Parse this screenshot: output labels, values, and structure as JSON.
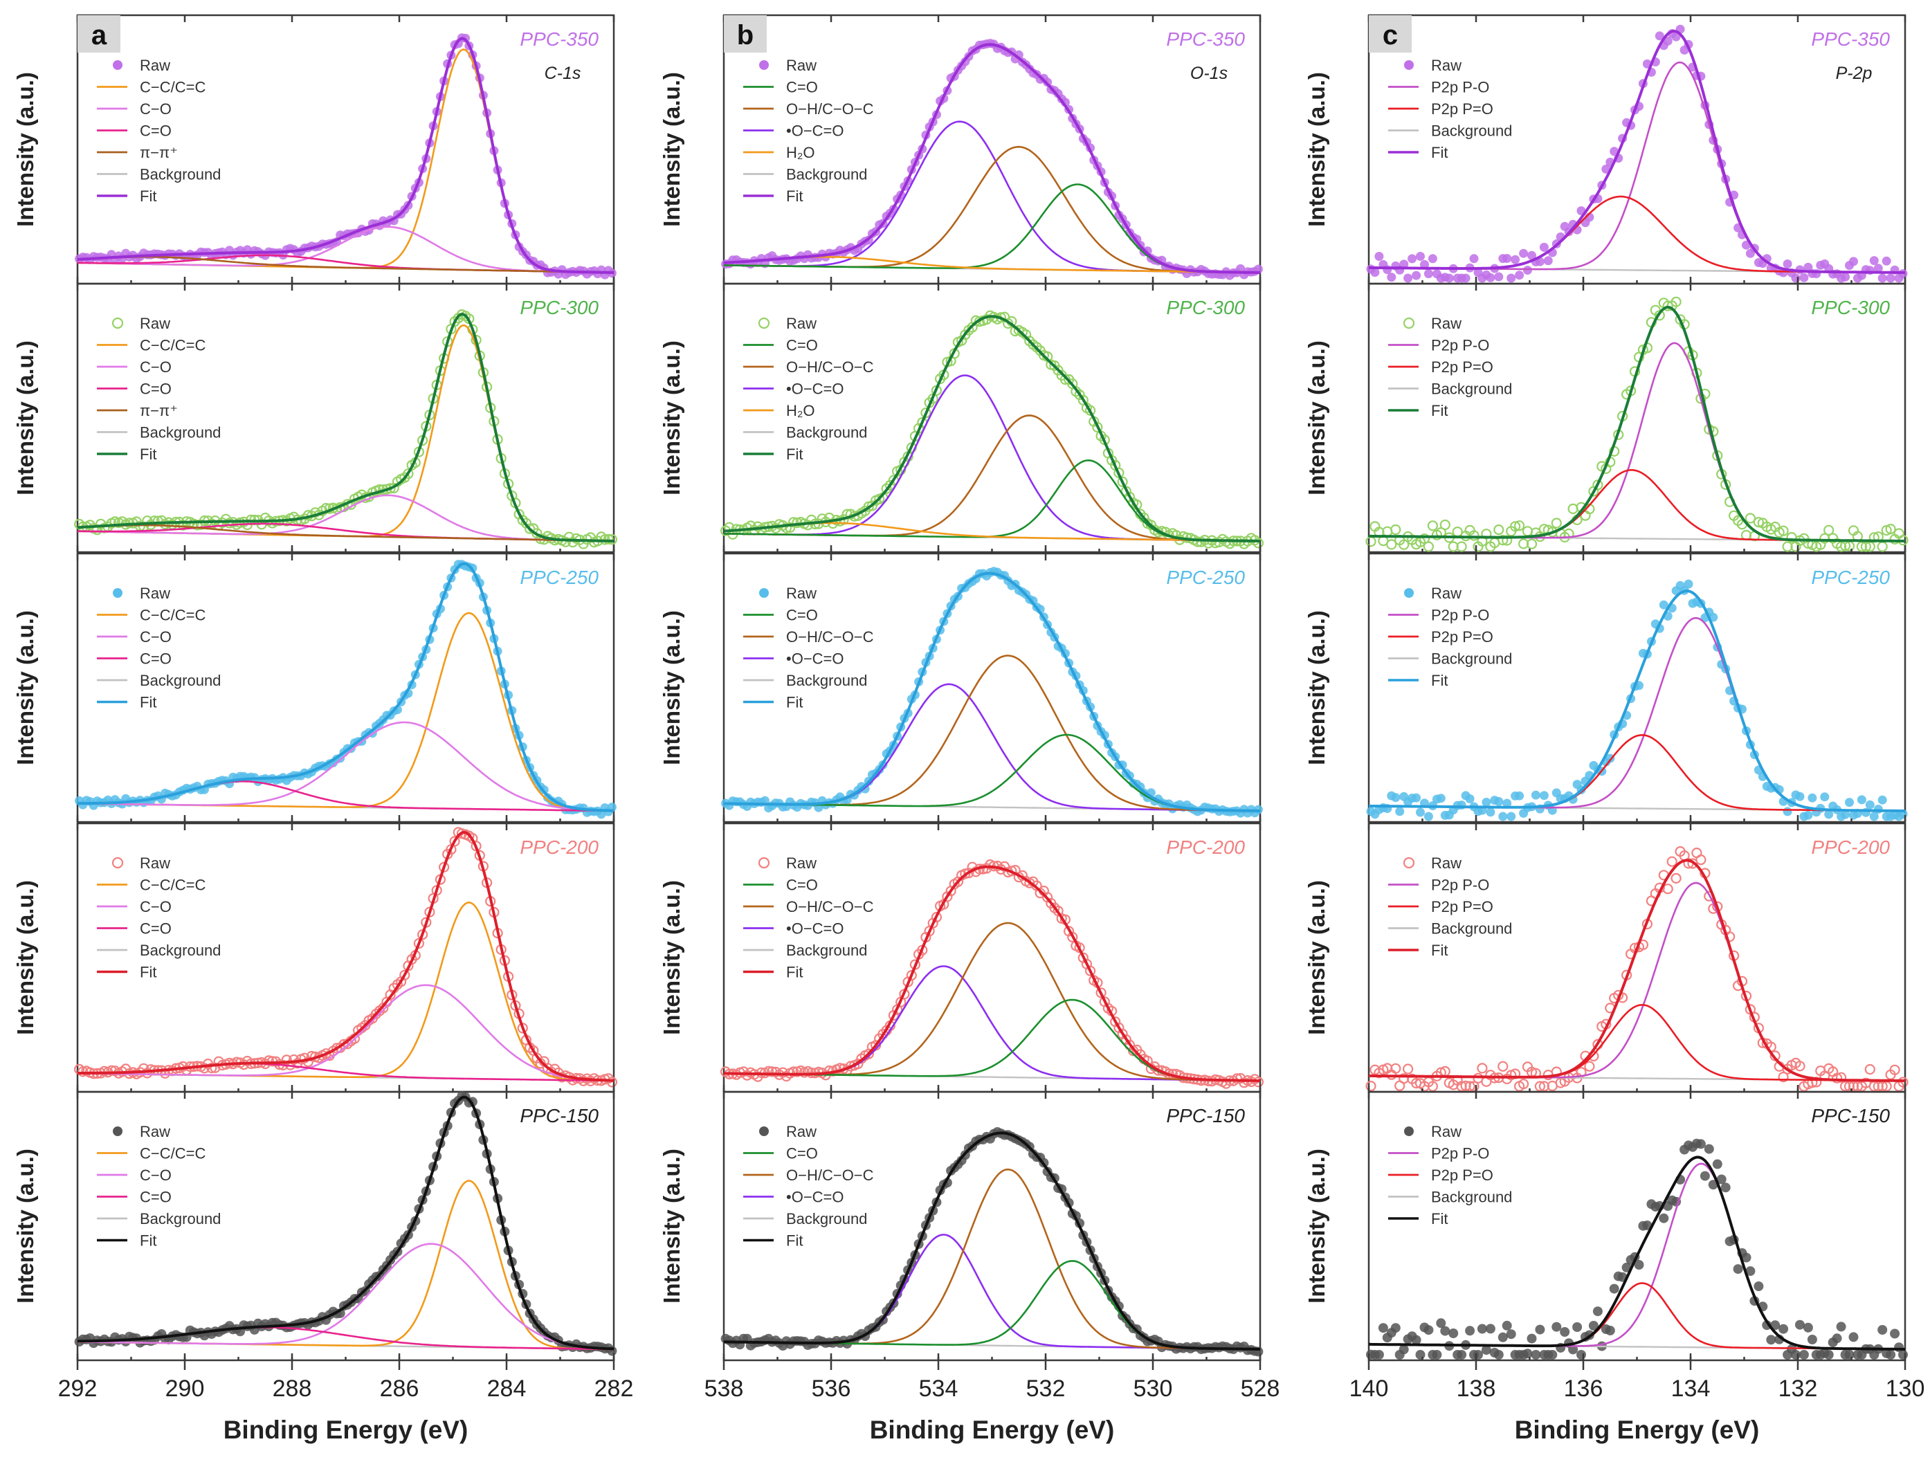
{
  "figure": {
    "panel_letters": [
      "a",
      "b",
      "c"
    ],
    "x_title": "Binding Energy (eV)",
    "y_title": "Intensity (a.u.)"
  },
  "colors": {
    "PPC-350": "#c070e8",
    "PPC-300": "#96d266",
    "PPC-250": "#57bdea",
    "PPC-200": "#f28080",
    "PPC-150": "#555555",
    "fit": {
      "PPC-350": "#9b2fd6",
      "PPC-300": "#1a7d38",
      "PPC-250": "#2aa0dc",
      "PPC-200": "#dd1f2c",
      "PPC-150": "#111111"
    },
    "components": {
      "C-C/C=C": "#f29a1b",
      "C-O": "#e07ae8",
      "C=O (C1s)": "#e8228c",
      "pi-pi*": "#a9601e",
      "C=O (O1s)": "#1b8f2e",
      "O-H/C-O-C": "#b3651c",
      "O-C=O": "#8d2ff0",
      "H2O": "#f29a1b",
      "P2p P-O": "#c44fc7",
      "P2p P=O": "#ea1d25",
      "Background": "#c2c2c2"
    }
  },
  "chart_data": [
    {
      "type": "line",
      "panel": "a",
      "core_level": "C-1s",
      "title": "PPC-350",
      "xlabel": "Binding Energy (eV)",
      "ylabel": "Intensity (a.u.)",
      "xlim": [
        292,
        282
      ],
      "x_ticks": [
        292,
        290,
        288,
        286,
        284,
        282
      ],
      "legend": [
        "Raw",
        "C−C/C=C",
        "C−O",
        "C=O",
        "π−π⁺",
        "Background",
        "Fit"
      ],
      "series": [
        {
          "name": "C-C/C=C",
          "center": 284.8,
          "height": 0.9,
          "width": 0.5
        },
        {
          "name": "C-O",
          "center": 286.2,
          "height": 0.17,
          "width": 0.85
        },
        {
          "name": "C=O",
          "center": 288.4,
          "height": 0.045,
          "width": 1.1
        },
        {
          "name": "pi-pi*",
          "center": 290.5,
          "height": 0.03,
          "width": 1.2
        }
      ],
      "background": {
        "start": 0.04,
        "end": 0.0
      }
    },
    {
      "type": "line",
      "panel": "a",
      "core_level": "",
      "title": "PPC-300",
      "xlabel": "Binding Energy (eV)",
      "ylabel": "Intensity (a.u.)",
      "xlim": [
        292,
        282
      ],
      "x_ticks": [
        292,
        290,
        288,
        286,
        284,
        282
      ],
      "legend": [
        "Raw",
        "C−C/C=C",
        "C−O",
        "C=O",
        "π−π⁺",
        "Background",
        "Fit"
      ],
      "series": [
        {
          "name": "C-C/C=C",
          "center": 284.8,
          "height": 0.87,
          "width": 0.5
        },
        {
          "name": "C-O",
          "center": 286.2,
          "height": 0.17,
          "width": 0.85
        },
        {
          "name": "C=O",
          "center": 288.4,
          "height": 0.045,
          "width": 1.2
        },
        {
          "name": "pi-pi*",
          "center": 290.6,
          "height": 0.03,
          "width": 1.2
        }
      ],
      "background": {
        "start": 0.04,
        "end": 0.0
      }
    },
    {
      "type": "line",
      "panel": "a",
      "core_level": "",
      "title": "PPC-250",
      "xlabel": "Binding Energy (eV)",
      "ylabel": "Intensity (a.u.)",
      "xlim": [
        292,
        282
      ],
      "x_ticks": [
        292,
        290,
        288,
        286,
        284,
        282
      ],
      "legend": [
        "Raw",
        "C−C/C=C",
        "C−O",
        "C=O",
        "Background",
        "Fit"
      ],
      "series": [
        {
          "name": "C-C/C=C",
          "center": 284.7,
          "height": 0.8,
          "width": 0.6
        },
        {
          "name": "C-O",
          "center": 285.9,
          "height": 0.35,
          "width": 1.1
        },
        {
          "name": "C=O",
          "center": 288.9,
          "height": 0.1,
          "width": 1.0
        }
      ],
      "background": {
        "start": 0.03,
        "end": 0.0
      }
    },
    {
      "type": "line",
      "panel": "a",
      "core_level": "",
      "title": "PPC-200",
      "xlabel": "Binding Energy (eV)",
      "ylabel": "Intensity (a.u.)",
      "xlim": [
        292,
        282
      ],
      "x_ticks": [
        292,
        290,
        288,
        286,
        284,
        282
      ],
      "legend": [
        "Raw",
        "C−C/C=C",
        "C−O",
        "C=O",
        "Background",
        "Fit"
      ],
      "series": [
        {
          "name": "C-C/C=C",
          "center": 284.7,
          "height": 0.72,
          "width": 0.55
        },
        {
          "name": "C-O",
          "center": 285.5,
          "height": 0.38,
          "width": 1.0
        },
        {
          "name": "C=O",
          "center": 288.7,
          "height": 0.05,
          "width": 1.2
        }
      ],
      "background": {
        "start": 0.03,
        "end": 0.0
      }
    },
    {
      "type": "line",
      "panel": "a",
      "core_level": "",
      "title": "PPC-150",
      "xlabel": "Binding Energy (eV)",
      "ylabel": "Intensity (a.u.)",
      "xlim": [
        292,
        282
      ],
      "x_ticks": [
        292,
        290,
        288,
        286,
        284,
        282
      ],
      "legend": [
        "Raw",
        "C−C/C=C",
        "C−O",
        "C=O",
        "Background",
        "Fit"
      ],
      "series": [
        {
          "name": "C-C/C=C",
          "center": 284.7,
          "height": 0.68,
          "width": 0.52
        },
        {
          "name": "C-O",
          "center": 285.4,
          "height": 0.42,
          "width": 1.0
        },
        {
          "name": "C=O",
          "center": 288.4,
          "height": 0.07,
          "width": 1.4
        }
      ],
      "background": {
        "start": 0.03,
        "end": 0.0
      }
    },
    {
      "type": "line",
      "panel": "b",
      "core_level": "O-1s",
      "title": "PPC-350",
      "xlabel": "Binding Energy (eV)",
      "ylabel": "Intensity (a.u.)",
      "xlim": [
        538,
        528
      ],
      "x_ticks": [
        538,
        536,
        534,
        532,
        530,
        528
      ],
      "legend": [
        "Raw",
        "C=O",
        "O−H/C−O−C",
        "•O−C=O",
        "H₂O",
        "Background",
        "Fit"
      ],
      "series": [
        {
          "name": "O-C=O",
          "center": 533.6,
          "height": 0.6,
          "width": 0.85
        },
        {
          "name": "O-H/C-O-C",
          "center": 532.5,
          "height": 0.5,
          "width": 0.85
        },
        {
          "name": "C=O",
          "center": 531.4,
          "height": 0.35,
          "width": 0.7
        },
        {
          "name": "H2O",
          "center": 536.0,
          "height": 0.04,
          "width": 1.2
        }
      ],
      "background": {
        "start": 0.03,
        "end": 0.0
      }
    },
    {
      "type": "line",
      "panel": "b",
      "core_level": "",
      "title": "PPC-300",
      "xlabel": "Binding Energy (eV)",
      "ylabel": "Intensity (a.u.)",
      "xlim": [
        538,
        528
      ],
      "x_ticks": [
        538,
        536,
        534,
        532,
        530,
        528
      ],
      "legend": [
        "Raw",
        "C=O",
        "O−H/C−O−C",
        "•O−C=O",
        "H₂O",
        "Background",
        "Fit"
      ],
      "series": [
        {
          "name": "O-C=O",
          "center": 533.5,
          "height": 0.66,
          "width": 0.85
        },
        {
          "name": "O-H/C-O-C",
          "center": 532.3,
          "height": 0.5,
          "width": 0.8
        },
        {
          "name": "C=O",
          "center": 531.2,
          "height": 0.32,
          "width": 0.6
        },
        {
          "name": "H2O",
          "center": 535.9,
          "height": 0.05,
          "width": 1.2
        }
      ],
      "background": {
        "start": 0.03,
        "end": 0.0
      }
    },
    {
      "type": "line",
      "panel": "b",
      "core_level": "",
      "title": "PPC-250",
      "xlabel": "Binding Energy (eV)",
      "ylabel": "Intensity (a.u.)",
      "xlim": [
        538,
        528
      ],
      "x_ticks": [
        538,
        536,
        534,
        532,
        530,
        528
      ],
      "legend": [
        "Raw",
        "C=O",
        "O−H/C−O−C",
        "•O−C=O",
        "Background",
        "Fit"
      ],
      "series": [
        {
          "name": "O-C=O",
          "center": 533.8,
          "height": 0.5,
          "width": 0.8
        },
        {
          "name": "O-H/C-O-C",
          "center": 532.7,
          "height": 0.62,
          "width": 0.9
        },
        {
          "name": "C=O",
          "center": 531.6,
          "height": 0.3,
          "width": 0.8
        }
      ],
      "background": {
        "start": 0.03,
        "end": 0.0
      }
    },
    {
      "type": "line",
      "panel": "b",
      "core_level": "",
      "title": "PPC-200",
      "xlabel": "Binding Energy (eV)",
      "ylabel": "Intensity (a.u.)",
      "xlim": [
        538,
        528
      ],
      "x_ticks": [
        538,
        536,
        534,
        532,
        530,
        528
      ],
      "legend": [
        "Raw",
        "C=O",
        "O−H/C−O−C",
        "•O−C=O",
        "Background",
        "Fit"
      ],
      "series": [
        {
          "name": "O-C=O",
          "center": 533.9,
          "height": 0.45,
          "width": 0.75
        },
        {
          "name": "O-H/C-O-C",
          "center": 532.7,
          "height": 0.63,
          "width": 0.9
        },
        {
          "name": "C=O",
          "center": 531.5,
          "height": 0.32,
          "width": 0.75
        }
      ],
      "background": {
        "start": 0.03,
        "end": 0.0
      }
    },
    {
      "type": "line",
      "panel": "b",
      "core_level": "",
      "title": "PPC-150",
      "xlabel": "Binding Energy (eV)",
      "ylabel": "Intensity (a.u.)",
      "xlim": [
        538,
        528
      ],
      "x_ticks": [
        538,
        536,
        534,
        532,
        530,
        528
      ],
      "legend": [
        "Raw",
        "C=O",
        "O−H/C−O−C",
        "•O−C=O",
        "Background",
        "Fit"
      ],
      "series": [
        {
          "name": "O-C=O",
          "center": 533.9,
          "height": 0.45,
          "width": 0.65
        },
        {
          "name": "O-H/C-O-C",
          "center": 532.7,
          "height": 0.72,
          "width": 0.75
        },
        {
          "name": "C=O",
          "center": 531.5,
          "height": 0.35,
          "width": 0.65
        }
      ],
      "background": {
        "start": 0.03,
        "end": 0.0
      }
    },
    {
      "type": "line",
      "panel": "c",
      "core_level": "P-2p",
      "title": "PPC-350",
      "xlabel": "Binding Energy (eV)",
      "ylabel": "Intensity (a.u.)",
      "xlim": [
        140,
        130
      ],
      "x_ticks": [
        140,
        138,
        136,
        134,
        132,
        130
      ],
      "legend": [
        "Raw",
        "P2p P-O",
        "P2p P=O",
        "Background",
        "Fit"
      ],
      "series": [
        {
          "name": "P2p P-O",
          "center": 134.2,
          "height": 0.85,
          "width": 0.65
        },
        {
          "name": "P2p P=O",
          "center": 135.3,
          "height": 0.3,
          "width": 0.8
        }
      ],
      "background": {
        "start": 0.02,
        "end": 0.0
      }
    },
    {
      "type": "line",
      "panel": "c",
      "core_level": "",
      "title": "PPC-300",
      "xlabel": "Binding Energy (eV)",
      "ylabel": "Intensity (a.u.)",
      "xlim": [
        140,
        130
      ],
      "x_ticks": [
        140,
        138,
        136,
        134,
        132,
        130
      ],
      "legend": [
        "Raw",
        "P2p P-O",
        "P2p P=O",
        "Background",
        "Fit"
      ],
      "series": [
        {
          "name": "P2p P-O",
          "center": 134.3,
          "height": 0.8,
          "width": 0.6
        },
        {
          "name": "P2p P=O",
          "center": 135.1,
          "height": 0.28,
          "width": 0.65
        }
      ],
      "background": {
        "start": 0.02,
        "end": 0.0
      }
    },
    {
      "type": "line",
      "panel": "c",
      "core_level": "",
      "title": "PPC-250",
      "xlabel": "Binding Energy (eV)",
      "ylabel": "Intensity (a.u.)",
      "xlim": [
        140,
        130
      ],
      "x_ticks": [
        140,
        138,
        136,
        134,
        132,
        130
      ],
      "legend": [
        "Raw",
        "P2p P-O",
        "P2p P=O",
        "Background",
        "Fit"
      ],
      "series": [
        {
          "name": "P2p P-O",
          "center": 133.9,
          "height": 0.78,
          "width": 0.7
        },
        {
          "name": "P2p P=O",
          "center": 134.9,
          "height": 0.3,
          "width": 0.65
        }
      ],
      "background": {
        "start": 0.02,
        "end": 0.0
      }
    },
    {
      "type": "line",
      "panel": "c",
      "core_level": "",
      "title": "PPC-200",
      "xlabel": "Binding Energy (eV)",
      "ylabel": "Intensity (a.u.)",
      "xlim": [
        140,
        130
      ],
      "x_ticks": [
        140,
        138,
        136,
        134,
        132,
        130
      ],
      "legend": [
        "Raw",
        "P2p P-O",
        "P2p P=O",
        "Background",
        "Fit"
      ],
      "series": [
        {
          "name": "P2p P-O",
          "center": 133.9,
          "height": 0.8,
          "width": 0.7
        },
        {
          "name": "P2p P=O",
          "center": 134.9,
          "height": 0.3,
          "width": 0.6
        }
      ],
      "background": {
        "start": 0.02,
        "end": 0.0
      }
    },
    {
      "type": "line",
      "panel": "c",
      "core_level": "",
      "title": "PPC-150",
      "xlabel": "Binding Energy (eV)",
      "ylabel": "Intensity (a.u.)",
      "xlim": [
        140,
        130
      ],
      "x_ticks": [
        140,
        138,
        136,
        134,
        132,
        130
      ],
      "legend": [
        "Raw",
        "P2p P-O",
        "P2p P=O",
        "Background",
        "Fit"
      ],
      "series": [
        {
          "name": "P2p P-O",
          "center": 133.8,
          "height": 0.75,
          "width": 0.62
        },
        {
          "name": "P2p P=O",
          "center": 134.9,
          "height": 0.26,
          "width": 0.5
        }
      ],
      "background": {
        "start": 0.02,
        "end": 0.0
      }
    }
  ]
}
